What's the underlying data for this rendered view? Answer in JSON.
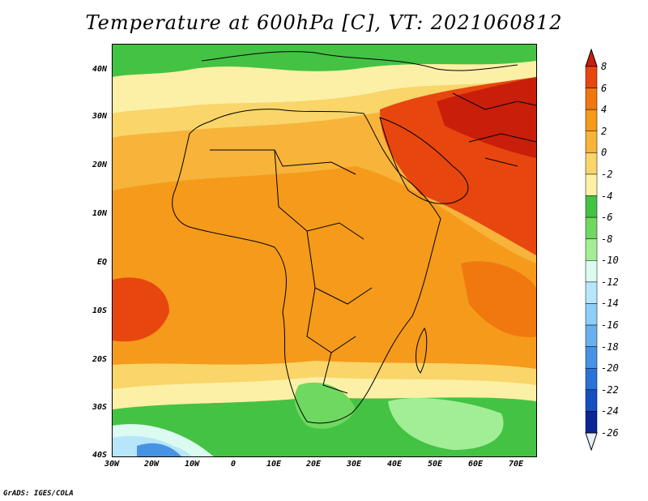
{
  "title": "Temperature at 600hPa [C], VT: 2021060812",
  "credit": "GrADS: IGES/COLA",
  "lat_labels": [
    "40N",
    "30N",
    "20N",
    "10N",
    "EQ",
    "10S",
    "20S",
    "30S",
    "40S"
  ],
  "lon_labels": [
    "30W",
    "20W",
    "10W",
    "0",
    "10E",
    "20E",
    "30E",
    "40E",
    "50E",
    "60E",
    "70E"
  ],
  "colorbar": {
    "labels": [
      "8",
      "6",
      "4",
      "2",
      "0",
      "-2",
      "-4",
      "-6",
      "-8",
      "-10",
      "-12",
      "-14",
      "-16",
      "-18",
      "-20",
      "-22",
      "-24",
      "-26"
    ],
    "colors": [
      "#c81e0a",
      "#e8460f",
      "#f0780f",
      "#f59a1a",
      "#f7b33a",
      "#f9d56a",
      "#fcf0a6",
      "#44c244",
      "#6fd860",
      "#a2ee97",
      "#dcfbf0",
      "#b7e6fb",
      "#8fcef6",
      "#69b1ee",
      "#4693e3",
      "#2a72d6",
      "#174fc0",
      "#0b2596",
      "#081070"
    ]
  },
  "legend_colors": {
    "cold_fill": "#4693e3",
    "frame": "#000000"
  }
}
